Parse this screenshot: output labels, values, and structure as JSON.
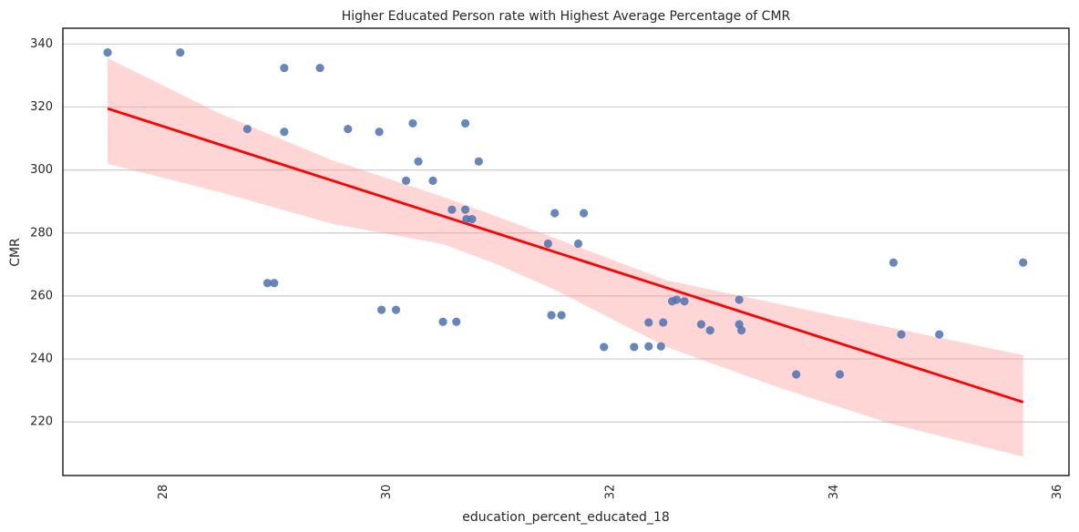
{
  "chart_data": {
    "type": "scatter",
    "title": "Higher Educated Person rate with Highest Average Percentage of CMR",
    "xlabel": "education_percent_educated_18",
    "ylabel": "CMR",
    "xlim": [
      27.1,
      36.1
    ],
    "ylim": [
      203,
      345
    ],
    "xticks": [
      28,
      30,
      32,
      34,
      36
    ],
    "yticks": [
      220,
      240,
      260,
      280,
      300,
      320,
      340
    ],
    "grid": "horizontal",
    "colors": {
      "points": "#4c72b0",
      "regression_line": "#ff0000",
      "confidence_band": "#ff9999",
      "grid": "#cccccc",
      "axes": "#262626"
    },
    "points": [
      {
        "x": 27.5,
        "y": 337.3
      },
      {
        "x": 28.15,
        "y": 337.3
      },
      {
        "x": 29.08,
        "y": 332.4
      },
      {
        "x": 29.4,
        "y": 332.4
      },
      {
        "x": 28.75,
        "y": 313.0
      },
      {
        "x": 29.08,
        "y": 312.1
      },
      {
        "x": 29.65,
        "y": 313.0
      },
      {
        "x": 29.93,
        "y": 312.1
      },
      {
        "x": 30.23,
        "y": 314.8
      },
      {
        "x": 30.7,
        "y": 314.8
      },
      {
        "x": 30.28,
        "y": 302.7
      },
      {
        "x": 30.82,
        "y": 302.7
      },
      {
        "x": 30.17,
        "y": 296.6
      },
      {
        "x": 30.41,
        "y": 296.6
      },
      {
        "x": 30.58,
        "y": 287.4
      },
      {
        "x": 30.7,
        "y": 287.4
      },
      {
        "x": 30.71,
        "y": 284.4
      },
      {
        "x": 30.76,
        "y": 284.4
      },
      {
        "x": 31.5,
        "y": 286.3
      },
      {
        "x": 31.76,
        "y": 286.3
      },
      {
        "x": 31.44,
        "y": 276.6
      },
      {
        "x": 31.71,
        "y": 276.6
      },
      {
        "x": 28.93,
        "y": 264.1
      },
      {
        "x": 28.99,
        "y": 264.1
      },
      {
        "x": 29.95,
        "y": 255.6
      },
      {
        "x": 30.08,
        "y": 255.6
      },
      {
        "x": 30.5,
        "y": 251.8
      },
      {
        "x": 30.62,
        "y": 251.8
      },
      {
        "x": 31.47,
        "y": 253.9
      },
      {
        "x": 31.56,
        "y": 253.9
      },
      {
        "x": 31.94,
        "y": 243.8
      },
      {
        "x": 32.21,
        "y": 243.8
      },
      {
        "x": 32.34,
        "y": 244.0
      },
      {
        "x": 32.45,
        "y": 244.0
      },
      {
        "x": 32.34,
        "y": 251.6
      },
      {
        "x": 32.47,
        "y": 251.6
      },
      {
        "x": 32.55,
        "y": 258.3
      },
      {
        "x": 32.59,
        "y": 258.8
      },
      {
        "x": 32.66,
        "y": 258.3
      },
      {
        "x": 33.15,
        "y": 258.8
      },
      {
        "x": 32.81,
        "y": 251.0
      },
      {
        "x": 32.89,
        "y": 249.1
      },
      {
        "x": 33.15,
        "y": 251.0
      },
      {
        "x": 33.17,
        "y": 249.1
      },
      {
        "x": 33.66,
        "y": 235.1
      },
      {
        "x": 34.05,
        "y": 235.1
      },
      {
        "x": 34.53,
        "y": 270.6
      },
      {
        "x": 35.69,
        "y": 270.6
      },
      {
        "x": 34.6,
        "y": 247.8
      },
      {
        "x": 34.94,
        "y": 247.8
      }
    ],
    "regression": {
      "x": [
        27.5,
        35.69
      ],
      "y": [
        319.5,
        226.3
      ]
    },
    "confidence_band": {
      "x": [
        27.5,
        28.5,
        29.5,
        30.5,
        31.0,
        31.5,
        32.5,
        33.5,
        34.5,
        35.69
      ],
      "upper": [
        335.5,
        318.0,
        303.2,
        291.5,
        285.0,
        278.4,
        265.0,
        257.5,
        250.0,
        241.2
      ],
      "lower": [
        302.0,
        293.0,
        283.0,
        276.5,
        269.8,
        262.0,
        243.8,
        231.0,
        219.5,
        209.0
      ]
    }
  }
}
